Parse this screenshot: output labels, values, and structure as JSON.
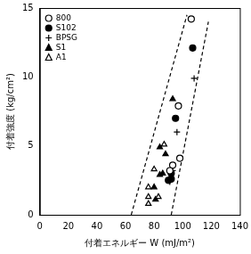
{
  "chart_data": {
    "type": "scatter",
    "x_label": "付着エネルギー W (mJ/m²)",
    "y_label": "付着強度 (kg/cm²)",
    "xlim": [
      0,
      140
    ],
    "xticks": [
      0,
      20,
      40,
      60,
      80,
      100,
      120,
      140
    ],
    "ylim": [
      0,
      15
    ],
    "yticks": [
      0,
      5,
      10,
      15
    ],
    "grid": false,
    "legend": "upper left",
    "series": [
      {
        "name": "800",
        "color": "#000000",
        "marker": "circle_open",
        "x": [
          106,
          97,
          98,
          93,
          91
        ],
        "values": [
          14.2,
          7.9,
          4.1,
          3.6,
          3.2
        ]
      },
      {
        "name": "S102",
        "color": "#000000",
        "marker": "circle",
        "x": [
          107,
          95,
          92,
          92,
          90
        ],
        "values": [
          12.1,
          7.0,
          3.0,
          2.6,
          2.5
        ]
      },
      {
        "name": "BPSG",
        "color": "#000000",
        "marker": "plus",
        "x": [
          108,
          96,
          93,
          91
        ],
        "values": [
          9.9,
          6.0,
          3.2,
          2.4
        ]
      },
      {
        "name": "S1",
        "color": "#000000",
        "marker": "triangle",
        "x": [
          93,
          84,
          88,
          84,
          80,
          81,
          86
        ],
        "values": [
          8.4,
          4.9,
          4.4,
          2.9,
          2.0,
          1.1,
          3.0
        ]
      },
      {
        "name": "A1",
        "color": "#000000",
        "marker": "triangle_open",
        "x": [
          80,
          76,
          76,
          76,
          87,
          83
        ],
        "values": [
          3.3,
          2.0,
          1.3,
          0.8,
          5.1,
          1.3
        ]
      }
    ],
    "bands": [
      {
        "x": [
          64,
          103
        ],
        "values": [
          0,
          14.5
        ],
        "color": "#000000",
        "line_style": "dashed"
      },
      {
        "x": [
          92,
          118
        ],
        "values": [
          0,
          14.0
        ],
        "color": "#000000",
        "line_style": "dashed"
      }
    ]
  }
}
